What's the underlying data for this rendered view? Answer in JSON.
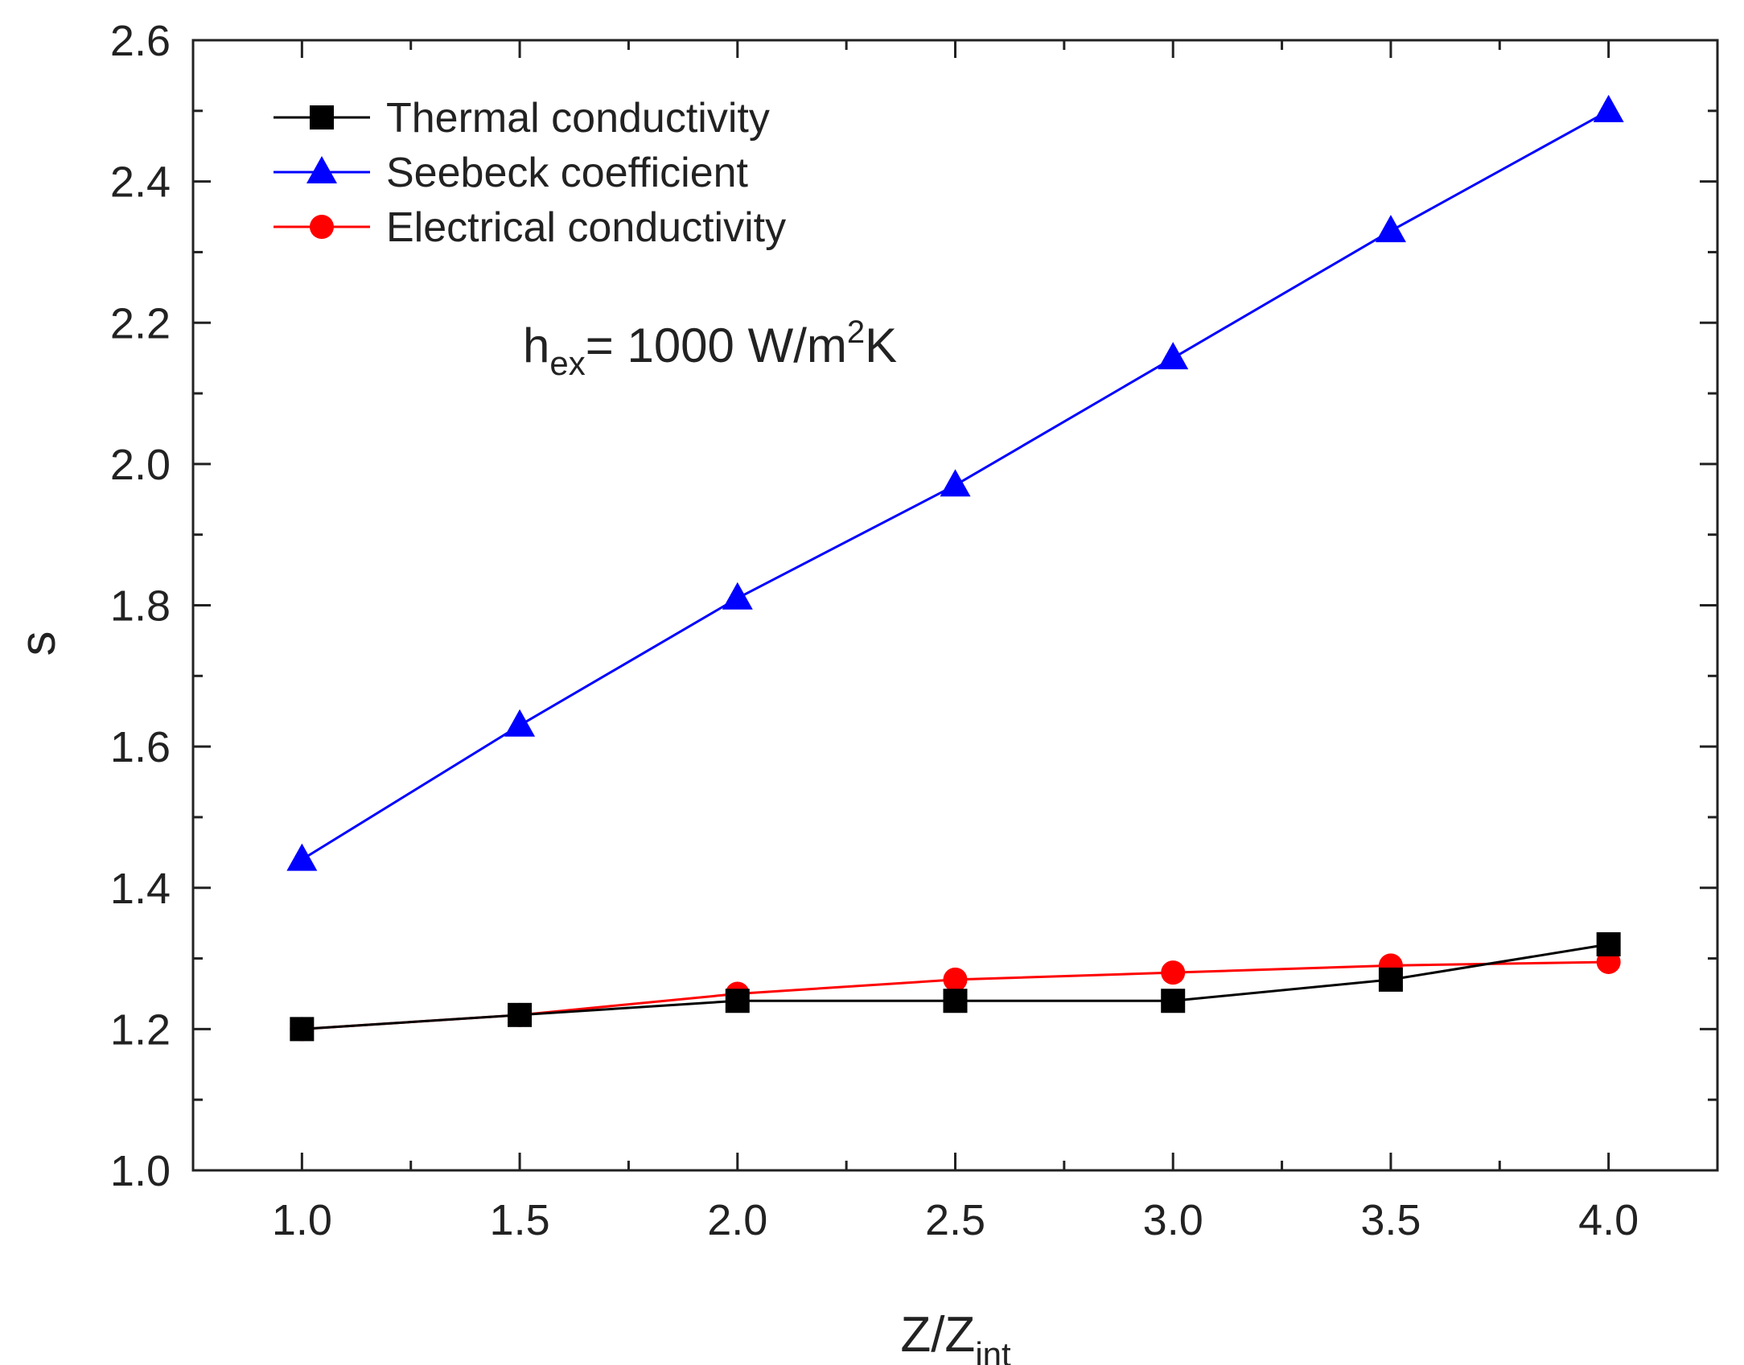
{
  "chart_data": {
    "type": "line",
    "title": "",
    "xlabel": "Z/Z",
    "xlabel_subscript": "int",
    "ylabel": "s",
    "xlim": [
      0.75,
      4.25
    ],
    "ylim": [
      1.0,
      2.6
    ],
    "x_ticks": [
      1.0,
      1.5,
      2.0,
      2.5,
      3.0,
      3.5,
      4.0
    ],
    "x_tick_labels": [
      "1.0",
      "1.5",
      "2.0",
      "2.5",
      "3.0",
      "3.5",
      "4.0"
    ],
    "y_ticks": [
      1.0,
      1.2,
      1.4,
      1.6,
      1.8,
      2.0,
      2.2,
      2.4,
      2.6
    ],
    "y_tick_labels": [
      "1.0",
      "1.2",
      "1.4",
      "1.6",
      "1.8",
      "2.0",
      "2.2",
      "2.4",
      "2.6"
    ],
    "grid": false,
    "legend_position": "top-left",
    "x": [
      1.0,
      1.5,
      2.0,
      2.5,
      3.0,
      3.5,
      4.0
    ],
    "series": [
      {
        "name": "Thermal conductivity",
        "marker": "square",
        "color": "#000000",
        "values": [
          1.2,
          1.22,
          1.24,
          1.24,
          1.24,
          1.27,
          1.32
        ]
      },
      {
        "name": "Seebeck coefficient",
        "marker": "triangle",
        "color": "#0000ff",
        "values": [
          1.44,
          1.63,
          1.81,
          1.97,
          2.15,
          2.33,
          2.5
        ]
      },
      {
        "name": "Electrical conductivity",
        "marker": "circle",
        "color": "#ff0000",
        "values": [
          1.2,
          1.22,
          1.25,
          1.27,
          1.28,
          1.29,
          1.295
        ]
      }
    ],
    "annotation": {
      "base": "h",
      "subscript": "ex",
      "text": "= 1000 W/m",
      "superscript": "2",
      "suffix": "K"
    }
  }
}
